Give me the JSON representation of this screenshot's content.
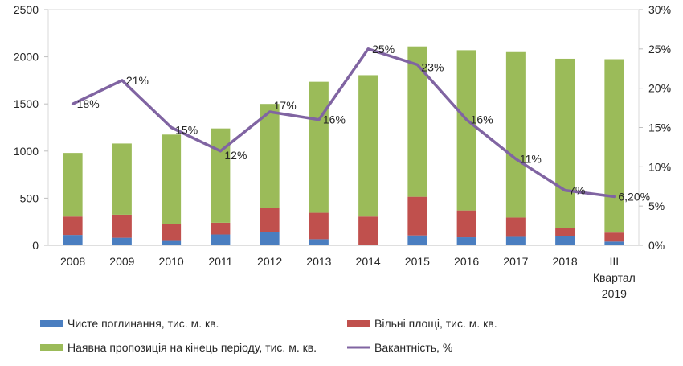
{
  "chart_data": {
    "type": "bar",
    "stacked": true,
    "categories": [
      "2008",
      "2009",
      "2010",
      "2011",
      "2012",
      "2013",
      "2014",
      "2015",
      "2016",
      "2017",
      "2018",
      "III Квартал 2019"
    ],
    "series": [
      {
        "name": "Чисте поглинання, тис. м. кв.",
        "kind": "bar",
        "color": "#4A7EC0",
        "values": [
          110,
          80,
          55,
          115,
          145,
          65,
          0,
          105,
          85,
          90,
          95,
          40
        ]
      },
      {
        "name": "Вільні площі, тис. м. кв.",
        "kind": "bar",
        "color": "#C0504D",
        "values": [
          195,
          245,
          170,
          125,
          250,
          280,
          305,
          410,
          285,
          205,
          85,
          95
        ]
      },
      {
        "name": "Наявна пропозиція на кінець періоду, тис. м. кв.",
        "kind": "bar",
        "color": "#9BBB59",
        "values": [
          675,
          755,
          950,
          1000,
          1105,
          1390,
          1500,
          1595,
          1700,
          1755,
          1800,
          1840
        ]
      },
      {
        "name": "Вакантність, %",
        "kind": "line",
        "axis": "secondary",
        "color": "#8064A2",
        "values": [
          18,
          21,
          15,
          12,
          17,
          16,
          25,
          23,
          16,
          11,
          7,
          6.2
        ],
        "labels": [
          "18%",
          "21%",
          "15%",
          "12%",
          "17%",
          "16%",
          "25%",
          "23%",
          "16%",
          "11%",
          "7%",
          "6,20%"
        ]
      }
    ],
    "ylim": [
      0,
      2500
    ],
    "yticks": [
      "0",
      "500",
      "1000",
      "1500",
      "2000",
      "2500"
    ],
    "y2lim": [
      0,
      30
    ],
    "y2ticks": [
      "0%",
      "5%",
      "10%",
      "15%",
      "20%",
      "25%",
      "30%"
    ],
    "grid": false,
    "legend": "bottom"
  }
}
